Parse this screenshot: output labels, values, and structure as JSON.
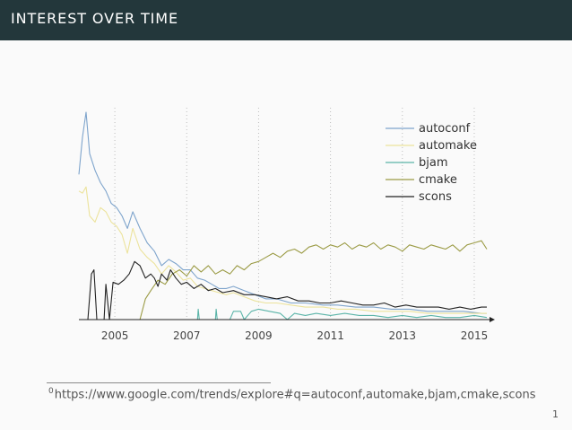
{
  "header": {
    "title": "INTEREST OVER TIME"
  },
  "footnote": {
    "marker": "0",
    "text": "https://www.google.com/trends/explore#q=autoconf,automake,bjam,cmake,scons"
  },
  "page_number": "1",
  "colors": {
    "header_bg": "#23373b",
    "autoconf": "#7ea4cc",
    "automake": "#ece39c",
    "bjam": "#5ab4a8",
    "cmake": "#9b9b45",
    "scons": "#222222"
  },
  "chart_data": {
    "type": "line",
    "title": "",
    "xlabel": "",
    "ylabel": "",
    "xlim": [
      2004.0,
      2015.4
    ],
    "ylim": [
      0,
      100
    ],
    "x_ticks": [
      "2005",
      "2007",
      "2009",
      "2011",
      "2013",
      "2015"
    ],
    "grid": "vertical dotted lines at x ticks",
    "legend_position": "top-right",
    "series": [
      {
        "name": "autoconf",
        "points": [
          [
            2004.0,
            70
          ],
          [
            2004.1,
            88
          ],
          [
            2004.2,
            100
          ],
          [
            2004.3,
            80
          ],
          [
            2004.45,
            72
          ],
          [
            2004.6,
            66
          ],
          [
            2004.75,
            62
          ],
          [
            2004.9,
            56
          ],
          [
            2005.05,
            54
          ],
          [
            2005.2,
            50
          ],
          [
            2005.35,
            44
          ],
          [
            2005.5,
            52
          ],
          [
            2005.7,
            44
          ],
          [
            2005.9,
            37
          ],
          [
            2006.1,
            33
          ],
          [
            2006.3,
            26
          ],
          [
            2006.5,
            29
          ],
          [
            2006.7,
            27
          ],
          [
            2006.9,
            24
          ],
          [
            2007.1,
            24
          ],
          [
            2007.3,
            20
          ],
          [
            2007.5,
            19
          ],
          [
            2007.7,
            17
          ],
          [
            2007.9,
            15
          ],
          [
            2008.1,
            15
          ],
          [
            2008.3,
            16
          ],
          [
            2008.6,
            14
          ],
          [
            2008.9,
            12
          ],
          [
            2009.2,
            10
          ],
          [
            2009.5,
            10
          ],
          [
            2009.9,
            8
          ],
          [
            2010.3,
            8
          ],
          [
            2010.8,
            7
          ],
          [
            2011.2,
            7
          ],
          [
            2011.7,
            6
          ],
          [
            2012.2,
            6
          ],
          [
            2012.7,
            5
          ],
          [
            2013.2,
            5
          ],
          [
            2013.7,
            4
          ],
          [
            2014.2,
            4
          ],
          [
            2014.7,
            4
          ],
          [
            2015.2,
            3
          ],
          [
            2015.35,
            3
          ]
        ]
      },
      {
        "name": "automake",
        "points": [
          [
            2004.0,
            62
          ],
          [
            2004.1,
            61
          ],
          [
            2004.2,
            64
          ],
          [
            2004.3,
            50
          ],
          [
            2004.45,
            47
          ],
          [
            2004.6,
            54
          ],
          [
            2004.75,
            52
          ],
          [
            2004.9,
            47
          ],
          [
            2005.05,
            45
          ],
          [
            2005.2,
            41
          ],
          [
            2005.35,
            32
          ],
          [
            2005.5,
            44
          ],
          [
            2005.7,
            34
          ],
          [
            2005.9,
            30
          ],
          [
            2006.1,
            27
          ],
          [
            2006.3,
            22
          ],
          [
            2006.5,
            26
          ],
          [
            2006.7,
            23
          ],
          [
            2006.9,
            19
          ],
          [
            2007.1,
            20
          ],
          [
            2007.3,
            16
          ],
          [
            2007.5,
            15
          ],
          [
            2007.7,
            14
          ],
          [
            2007.9,
            13
          ],
          [
            2008.1,
            12
          ],
          [
            2008.3,
            13
          ],
          [
            2008.6,
            11
          ],
          [
            2008.9,
            9
          ],
          [
            2009.2,
            8
          ],
          [
            2009.5,
            8
          ],
          [
            2009.9,
            7
          ],
          [
            2010.3,
            6
          ],
          [
            2010.8,
            6
          ],
          [
            2011.2,
            5
          ],
          [
            2011.7,
            5
          ],
          [
            2012.2,
            4
          ],
          [
            2012.7,
            4
          ],
          [
            2013.2,
            4
          ],
          [
            2013.7,
            3
          ],
          [
            2014.2,
            3
          ],
          [
            2014.7,
            3
          ],
          [
            2015.2,
            3
          ],
          [
            2015.35,
            3
          ]
        ]
      },
      {
        "name": "bjam",
        "points": [
          [
            2004.0,
            0
          ],
          [
            2006.9,
            0
          ],
          [
            2007.3,
            0
          ],
          [
            2007.32,
            5
          ],
          [
            2007.35,
            0
          ],
          [
            2007.8,
            0
          ],
          [
            2007.82,
            5
          ],
          [
            2007.85,
            0
          ],
          [
            2008.2,
            0
          ],
          [
            2008.3,
            4
          ],
          [
            2008.5,
            4
          ],
          [
            2008.6,
            0
          ],
          [
            2008.8,
            4
          ],
          [
            2009.0,
            5
          ],
          [
            2009.3,
            4
          ],
          [
            2009.6,
            3
          ],
          [
            2009.8,
            0
          ],
          [
            2010.0,
            3
          ],
          [
            2010.3,
            2
          ],
          [
            2010.6,
            3
          ],
          [
            2011.0,
            2
          ],
          [
            2011.4,
            3
          ],
          [
            2011.8,
            2
          ],
          [
            2012.2,
            2
          ],
          [
            2012.6,
            1
          ],
          [
            2013.0,
            2
          ],
          [
            2013.4,
            1
          ],
          [
            2013.8,
            2
          ],
          [
            2014.2,
            1
          ],
          [
            2014.6,
            1
          ],
          [
            2015.0,
            2
          ],
          [
            2015.35,
            1
          ]
        ]
      },
      {
        "name": "cmake",
        "points": [
          [
            2004.0,
            0
          ],
          [
            2005.7,
            0
          ],
          [
            2005.85,
            10
          ],
          [
            2006.0,
            14
          ],
          [
            2006.2,
            19
          ],
          [
            2006.4,
            17
          ],
          [
            2006.6,
            22
          ],
          [
            2006.8,
            24
          ],
          [
            2007.0,
            21
          ],
          [
            2007.2,
            26
          ],
          [
            2007.4,
            23
          ],
          [
            2007.6,
            26
          ],
          [
            2007.8,
            22
          ],
          [
            2008.0,
            24
          ],
          [
            2008.2,
            22
          ],
          [
            2008.4,
            26
          ],
          [
            2008.6,
            24
          ],
          [
            2008.8,
            27
          ],
          [
            2009.0,
            28
          ],
          [
            2009.2,
            30
          ],
          [
            2009.4,
            32
          ],
          [
            2009.6,
            30
          ],
          [
            2009.8,
            33
          ],
          [
            2010.0,
            34
          ],
          [
            2010.2,
            32
          ],
          [
            2010.4,
            35
          ],
          [
            2010.6,
            36
          ],
          [
            2010.8,
            34
          ],
          [
            2011.0,
            36
          ],
          [
            2011.2,
            35
          ],
          [
            2011.4,
            37
          ],
          [
            2011.6,
            34
          ],
          [
            2011.8,
            36
          ],
          [
            2012.0,
            35
          ],
          [
            2012.2,
            37
          ],
          [
            2012.4,
            34
          ],
          [
            2012.6,
            36
          ],
          [
            2012.8,
            35
          ],
          [
            2013.0,
            33
          ],
          [
            2013.2,
            36
          ],
          [
            2013.4,
            35
          ],
          [
            2013.6,
            34
          ],
          [
            2013.8,
            36
          ],
          [
            2014.0,
            35
          ],
          [
            2014.2,
            34
          ],
          [
            2014.4,
            36
          ],
          [
            2014.6,
            33
          ],
          [
            2014.8,
            36
          ],
          [
            2015.0,
            37
          ],
          [
            2015.2,
            38
          ],
          [
            2015.35,
            34
          ]
        ]
      },
      {
        "name": "scons",
        "points": [
          [
            2004.0,
            0
          ],
          [
            2004.25,
            0
          ],
          [
            2004.35,
            22
          ],
          [
            2004.42,
            24
          ],
          [
            2004.5,
            0
          ],
          [
            2004.7,
            0
          ],
          [
            2004.75,
            17
          ],
          [
            2004.85,
            0
          ],
          [
            2004.95,
            18
          ],
          [
            2005.1,
            17
          ],
          [
            2005.25,
            19
          ],
          [
            2005.4,
            22
          ],
          [
            2005.55,
            28
          ],
          [
            2005.7,
            26
          ],
          [
            2005.85,
            20
          ],
          [
            2006.0,
            22
          ],
          [
            2006.1,
            20
          ],
          [
            2006.2,
            16
          ],
          [
            2006.3,
            22
          ],
          [
            2006.45,
            19
          ],
          [
            2006.55,
            24
          ],
          [
            2006.7,
            20
          ],
          [
            2006.85,
            17
          ],
          [
            2007.0,
            18
          ],
          [
            2007.2,
            15
          ],
          [
            2007.4,
            17
          ],
          [
            2007.6,
            14
          ],
          [
            2007.8,
            15
          ],
          [
            2008.0,
            13
          ],
          [
            2008.3,
            14
          ],
          [
            2008.6,
            12
          ],
          [
            2008.9,
            12
          ],
          [
            2009.2,
            11
          ],
          [
            2009.5,
            10
          ],
          [
            2009.8,
            11
          ],
          [
            2010.1,
            9
          ],
          [
            2010.4,
            9
          ],
          [
            2010.7,
            8
          ],
          [
            2011.0,
            8
          ],
          [
            2011.3,
            9
          ],
          [
            2011.6,
            8
          ],
          [
            2011.9,
            7
          ],
          [
            2012.2,
            7
          ],
          [
            2012.5,
            8
          ],
          [
            2012.8,
            6
          ],
          [
            2013.1,
            7
          ],
          [
            2013.4,
            6
          ],
          [
            2013.7,
            6
          ],
          [
            2014.0,
            6
          ],
          [
            2014.3,
            5
          ],
          [
            2014.6,
            6
          ],
          [
            2014.9,
            5
          ],
          [
            2015.2,
            6
          ],
          [
            2015.35,
            6
          ]
        ]
      }
    ]
  }
}
